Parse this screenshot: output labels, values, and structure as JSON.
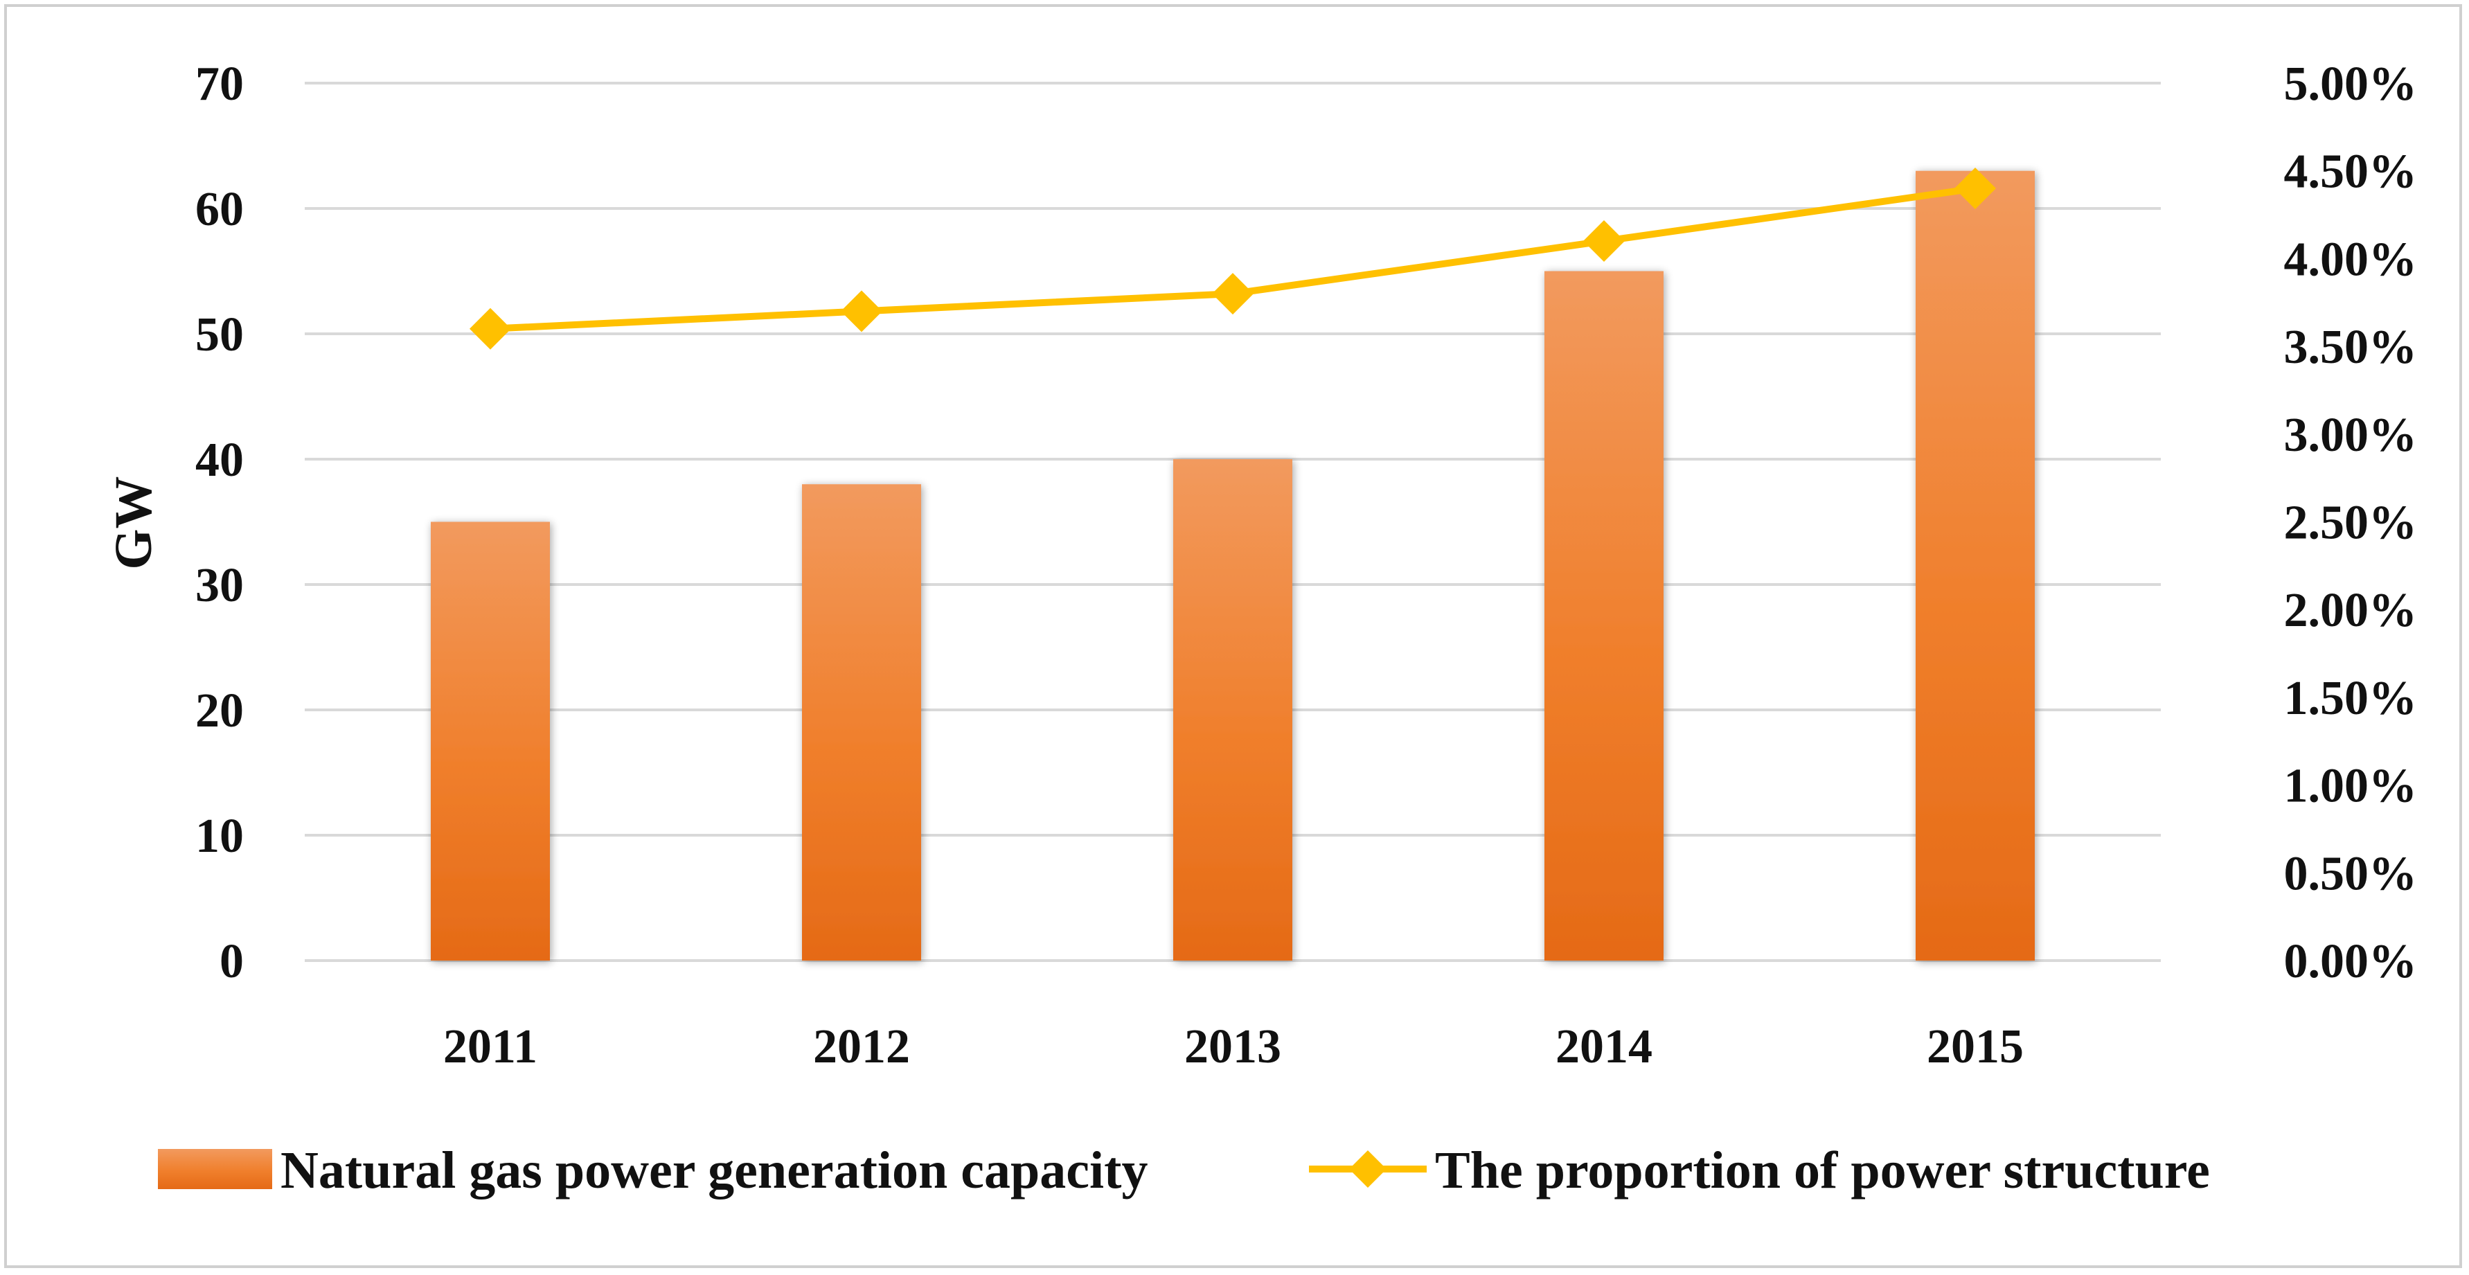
{
  "chart_data": {
    "type": "bar",
    "title": "",
    "xlabel": "",
    "ylabel": "GW",
    "categories": [
      "2011",
      "2012",
      "2013",
      "2014",
      "2015"
    ],
    "ylim": [
      0,
      70
    ],
    "y_ticks": [
      "0",
      "10",
      "20",
      "30",
      "40",
      "50",
      "60",
      "70"
    ],
    "y2lim": [
      0,
      0.05
    ],
    "y2_ticks": [
      "0.00%",
      "0.50%",
      "1.00%",
      "1.50%",
      "2.00%",
      "2.50%",
      "3.00%",
      "3.50%",
      "4.00%",
      "4.50%",
      "5.00%"
    ],
    "grid": true,
    "legend_position": "bottom",
    "series": [
      {
        "name": "Natural gas power generation capacity",
        "kind": "bar",
        "axis": "left",
        "values": [
          35,
          38,
          40,
          55,
          63
        ],
        "color": "#f07f2c"
      },
      {
        "name": "The proportion of power structure",
        "kind": "line",
        "axis": "right",
        "marker": "diamond",
        "values": [
          0.036,
          0.037,
          0.038,
          0.041,
          0.044
        ],
        "color": "#ffc000"
      }
    ]
  }
}
